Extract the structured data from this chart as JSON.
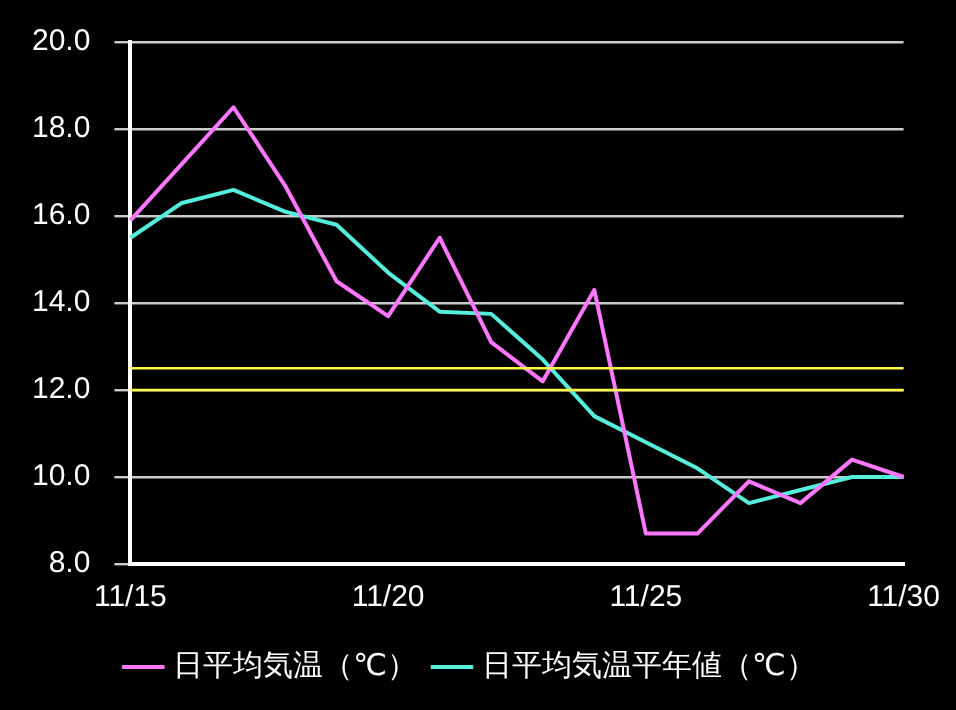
{
  "chart_data": {
    "type": "line",
    "categories": [
      "11/15",
      null,
      null,
      null,
      null,
      "11/20",
      null,
      null,
      null,
      null,
      "11/25",
      null,
      null,
      null,
      null,
      "11/30"
    ],
    "series": [
      {
        "name": "日平均気温（℃）",
        "color": "#ff77ff",
        "values": [
          15.9,
          17.2,
          18.5,
          16.7,
          14.5,
          13.7,
          15.5,
          13.1,
          12.2,
          14.3,
          8.7,
          8.7,
          9.9,
          9.4,
          10.4,
          10.0
        ]
      },
      {
        "name": "日平均気温平年値（℃）",
        "color": "#55eedd",
        "values": [
          15.5,
          16.3,
          16.6,
          16.1,
          15.8,
          14.7,
          13.8,
          13.75,
          12.7,
          11.4,
          10.8,
          10.2,
          9.4,
          9.7,
          10.0,
          10.0
        ]
      }
    ],
    "ylim": [
      8,
      20
    ],
    "yticks": [
      {
        "value": 8,
        "label": "8.0"
      },
      {
        "value": 10,
        "label": "10.0"
      },
      {
        "value": 12,
        "label": "12.0"
      },
      {
        "value": 14,
        "label": "14.0"
      },
      {
        "value": 16,
        "label": "16.0"
      },
      {
        "value": 18,
        "label": "18.0"
      },
      {
        "value": 20,
        "label": "20.0"
      }
    ],
    "ref_lines": [
      {
        "axis": "y",
        "value": 12.5,
        "color": "#ffff44"
      },
      {
        "axis": "y",
        "value": 12.0,
        "color": "#ffff44"
      }
    ],
    "grid": "y",
    "legend": "bottom",
    "marker": "none",
    "line_style": "solid"
  }
}
